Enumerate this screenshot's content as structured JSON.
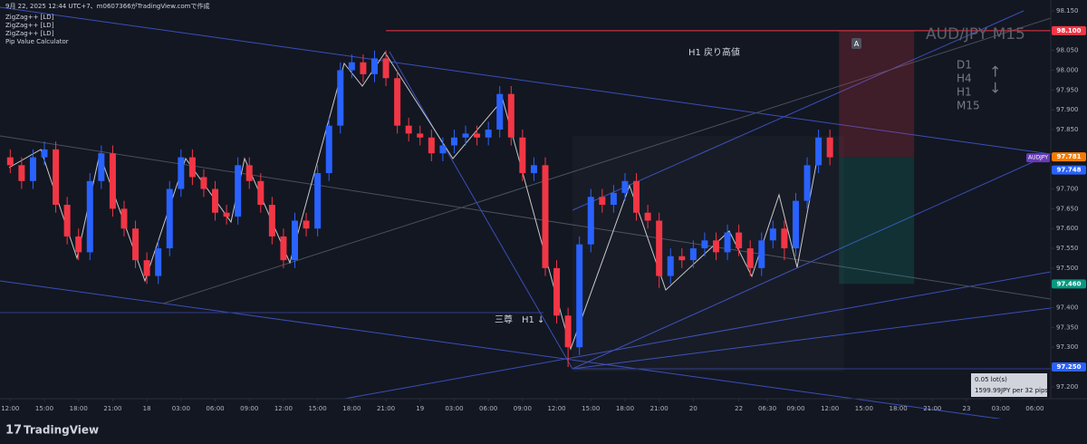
{
  "header": {
    "caption": "9月 22, 2025 12:44 UTC+7、m0607366がTradingView.comで作成",
    "indicators": [
      "ZigZag++ [LD]",
      "ZigZag++ [LD]",
      "ZigZag++ [LD]",
      "Pip Value Calculator"
    ]
  },
  "footer": {
    "brand": "TradingView"
  },
  "chart_data": {
    "type": "candlestick",
    "symbol": "AUD/JPY M15",
    "symbol_tag": "AUDJPY",
    "up_color": "#2962ff",
    "down_color": "#f23645",
    "xlim": [
      -0.9,
      91.4
    ],
    "ylim": [
      97.17,
      98.1775
    ],
    "xticks": [
      {
        "value": 0,
        "label": "12:00"
      },
      {
        "value": 3,
        "label": "15:00"
      },
      {
        "value": 6,
        "label": "18:00"
      },
      {
        "value": 9,
        "label": "21:00"
      },
      {
        "value": 12,
        "label": "18"
      },
      {
        "value": 15,
        "label": "03:00"
      },
      {
        "value": 18,
        "label": "06:00"
      },
      {
        "value": 21,
        "label": "09:00"
      },
      {
        "value": 24,
        "label": "12:00"
      },
      {
        "value": 27,
        "label": "15:00"
      },
      {
        "value": 30,
        "label": "18:00"
      },
      {
        "value": 33,
        "label": "21:00"
      },
      {
        "value": 36,
        "label": "19"
      },
      {
        "value": 39,
        "label": "03:00"
      },
      {
        "value": 42,
        "label": "06:00"
      },
      {
        "value": 45,
        "label": "09:00"
      },
      {
        "value": 48,
        "label": "12:00"
      },
      {
        "value": 51,
        "label": "15:00"
      },
      {
        "value": 54,
        "label": "18:00"
      },
      {
        "value": 57,
        "label": "21:00"
      },
      {
        "value": 60,
        "label": "20"
      },
      {
        "value": 64,
        "label": "22"
      },
      {
        "value": 66.5,
        "label": "06:30"
      },
      {
        "value": 69,
        "label": "09:00"
      },
      {
        "value": 72,
        "label": "12:00"
      },
      {
        "value": 75,
        "label": "15:00"
      },
      {
        "value": 78,
        "label": "18:00"
      },
      {
        "value": 81,
        "label": "21:00"
      },
      {
        "value": 84,
        "label": "23"
      },
      {
        "value": 87,
        "label": "03:00"
      },
      {
        "value": 90,
        "label": "06:00"
      }
    ],
    "yticks": [
      {
        "value": 97.2,
        "label": "97.200"
      },
      {
        "value": 97.3,
        "label": "97.300"
      },
      {
        "value": 97.35,
        "label": "97.350"
      },
      {
        "value": 97.4,
        "label": "97.400"
      },
      {
        "value": 97.5,
        "label": "97.500"
      },
      {
        "value": 97.55,
        "label": "97.550"
      },
      {
        "value": 97.6,
        "label": "97.600"
      },
      {
        "value": 97.65,
        "label": "97.650"
      },
      {
        "value": 97.7,
        "label": "97.700"
      },
      {
        "value": 97.85,
        "label": "97.850"
      },
      {
        "value": 97.9,
        "label": "97.900"
      },
      {
        "value": 97.95,
        "label": "97.950"
      },
      {
        "value": 98.0,
        "label": "98.000"
      },
      {
        "value": 98.05,
        "label": "98.050"
      },
      {
        "value": 98.15,
        "label": "98.150"
      }
    ],
    "price_tags": [
      {
        "value": 98.1,
        "label": "98.100",
        "color": "#f23645"
      },
      {
        "value": 97.781,
        "label": "97.781",
        "color": "#f57c00"
      },
      {
        "value": 97.748,
        "label": "97.748",
        "color": "#2962ff"
      },
      {
        "value": 97.46,
        "label": "97.460",
        "color": "#089981"
      },
      {
        "value": 97.25,
        "label": "97.250",
        "color": "#2962ff"
      }
    ],
    "annotations": {
      "high": "H1 戻り高値",
      "pattern": "三尊　H1 ↓",
      "marker": "A",
      "timeframes": [
        "D1",
        "H4",
        "H1",
        "M15"
      ],
      "lot": "0.05 lot(s)",
      "pip_value": "1599.99JPY per 32 pips"
    },
    "ohlc": [
      [
        97.78,
        97.8,
        97.74,
        97.76
      ],
      [
        97.76,
        97.78,
        97.7,
        97.72
      ],
      [
        97.72,
        97.8,
        97.7,
        97.78
      ],
      [
        97.78,
        97.82,
        97.76,
        97.8
      ],
      [
        97.8,
        97.82,
        97.64,
        97.66
      ],
      [
        97.66,
        97.68,
        97.56,
        97.58
      ],
      [
        97.58,
        97.6,
        97.52,
        97.54
      ],
      [
        97.54,
        97.74,
        97.52,
        97.72
      ],
      [
        97.72,
        97.81,
        97.7,
        97.79
      ],
      [
        97.79,
        97.81,
        97.63,
        97.65
      ],
      [
        97.65,
        97.67,
        97.58,
        97.6
      ],
      [
        97.6,
        97.62,
        97.5,
        97.52
      ],
      [
        97.52,
        97.54,
        97.46,
        97.48
      ],
      [
        97.48,
        97.57,
        97.46,
        97.55
      ],
      [
        97.55,
        97.72,
        97.53,
        97.7
      ],
      [
        97.7,
        97.8,
        97.68,
        97.78
      ],
      [
        97.78,
        97.8,
        97.71,
        97.73
      ],
      [
        97.73,
        97.75,
        97.68,
        97.7
      ],
      [
        97.7,
        97.72,
        97.62,
        97.64
      ],
      [
        97.64,
        97.66,
        97.61,
        97.63
      ],
      [
        97.63,
        97.78,
        97.61,
        97.76
      ],
      [
        97.76,
        97.78,
        97.7,
        97.72
      ],
      [
        97.72,
        97.74,
        97.64,
        97.66
      ],
      [
        97.66,
        97.68,
        97.56,
        97.58
      ],
      [
        97.58,
        97.6,
        97.5,
        97.52
      ],
      [
        97.52,
        97.64,
        97.5,
        97.62
      ],
      [
        97.62,
        97.64,
        97.58,
        97.6
      ],
      [
        97.6,
        97.76,
        97.58,
        97.74
      ],
      [
        97.74,
        97.88,
        97.72,
        97.86
      ],
      [
        97.86,
        98.02,
        97.84,
        98.0
      ],
      [
        98.0,
        98.04,
        97.98,
        98.02
      ],
      [
        98.02,
        98.04,
        97.97,
        97.99
      ],
      [
        97.99,
        98.05,
        97.97,
        98.03
      ],
      [
        98.03,
        98.05,
        97.96,
        97.98
      ],
      [
        97.98,
        98.0,
        97.84,
        97.86
      ],
      [
        97.86,
        97.88,
        97.82,
        97.84
      ],
      [
        97.84,
        97.86,
        97.81,
        97.83
      ],
      [
        97.83,
        97.85,
        97.77,
        97.79
      ],
      [
        97.79,
        97.83,
        97.77,
        97.81
      ],
      [
        97.81,
        97.85,
        97.79,
        97.83
      ],
      [
        97.83,
        97.86,
        97.81,
        97.84
      ],
      [
        97.84,
        97.86,
        97.81,
        97.83
      ],
      [
        97.83,
        97.87,
        97.81,
        97.85
      ],
      [
        97.85,
        97.96,
        97.83,
        97.94
      ],
      [
        97.94,
        97.96,
        97.81,
        97.83
      ],
      [
        97.83,
        97.85,
        97.72,
        97.74
      ],
      [
        97.74,
        97.78,
        97.72,
        97.76
      ],
      [
        97.76,
        97.78,
        97.48,
        97.5
      ],
      [
        97.5,
        97.52,
        97.36,
        97.38
      ],
      [
        97.38,
        97.4,
        97.25,
        97.3
      ],
      [
        97.3,
        97.58,
        97.28,
        97.56
      ],
      [
        97.56,
        97.7,
        97.54,
        97.68
      ],
      [
        97.68,
        97.7,
        97.64,
        97.66
      ],
      [
        97.66,
        97.71,
        97.64,
        97.69
      ],
      [
        97.69,
        97.74,
        97.67,
        97.72
      ],
      [
        97.72,
        97.74,
        97.62,
        97.64
      ],
      [
        97.64,
        97.66,
        97.6,
        97.62
      ],
      [
        97.62,
        97.64,
        97.45,
        97.48
      ],
      [
        97.48,
        97.55,
        97.46,
        97.53
      ],
      [
        97.53,
        97.55,
        97.5,
        97.52
      ],
      [
        97.52,
        97.57,
        97.5,
        97.55
      ],
      [
        97.55,
        97.59,
        97.53,
        97.57
      ],
      [
        97.57,
        97.59,
        97.52,
        97.54
      ],
      [
        97.54,
        97.61,
        97.52,
        97.59
      ],
      [
        97.59,
        97.61,
        97.53,
        97.55
      ],
      [
        97.55,
        97.57,
        97.48,
        97.5
      ],
      [
        97.5,
        97.59,
        97.48,
        97.57
      ],
      [
        97.57,
        97.62,
        97.55,
        97.6
      ],
      [
        97.6,
        97.62,
        97.52,
        97.55
      ],
      [
        97.55,
        97.69,
        97.53,
        97.67
      ],
      [
        97.67,
        97.78,
        97.65,
        97.76
      ],
      [
        97.76,
        97.85,
        97.74,
        97.83
      ],
      [
        97.83,
        97.85,
        97.76,
        97.78
      ]
    ]
  }
}
